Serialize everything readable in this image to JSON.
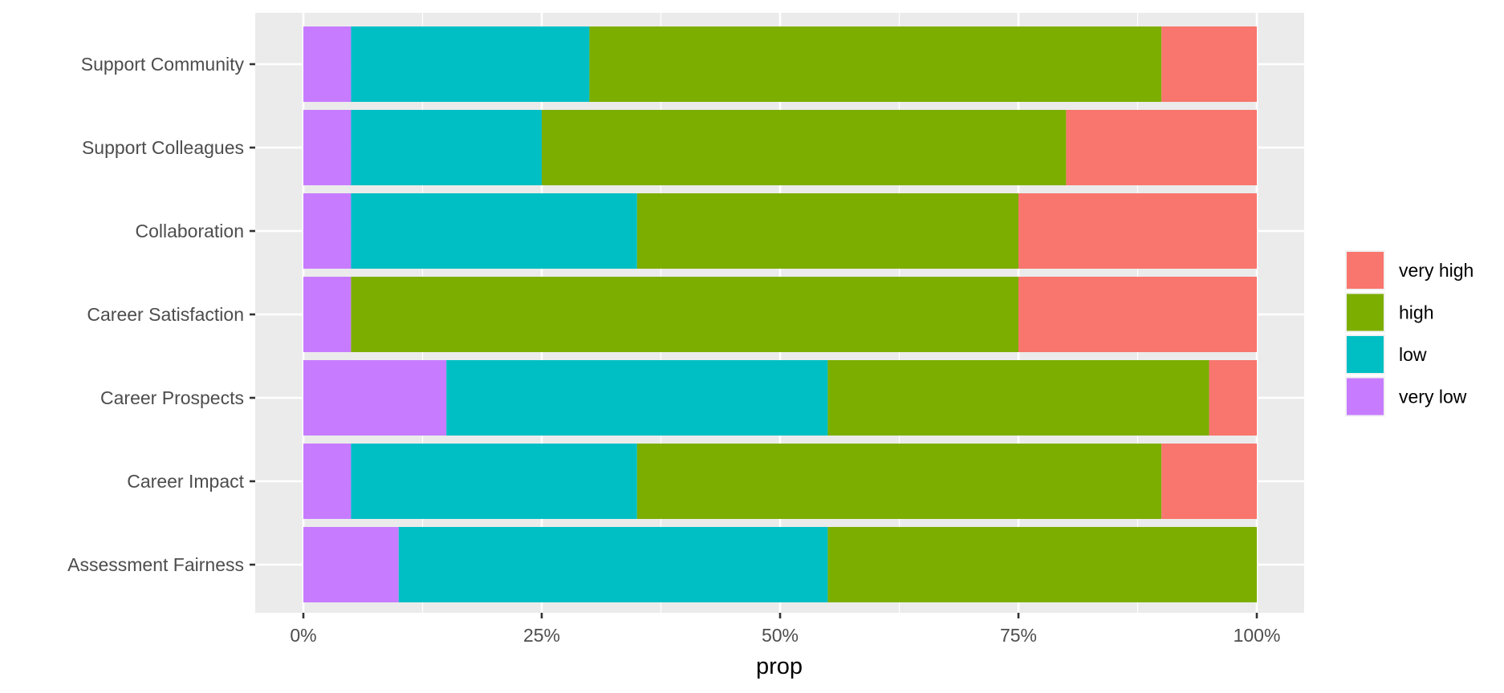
{
  "chart_data": {
    "type": "bar",
    "orientation": "horizontal",
    "stacked": "fill",
    "categories": [
      "Support Community",
      "Support Colleagues",
      "Collaboration",
      "Career Satisfaction",
      "Career Prospects",
      "Career Impact",
      "Assessment Fairness"
    ],
    "series": [
      {
        "name": "very low",
        "color": "#C77CFF",
        "values": [
          0.05,
          0.05,
          0.05,
          0.05,
          0.15,
          0.05,
          0.1
        ]
      },
      {
        "name": "low",
        "color": "#00BFC4",
        "values": [
          0.25,
          0.2,
          0.3,
          0.0,
          0.4,
          0.3,
          0.45
        ]
      },
      {
        "name": "high",
        "color": "#7CAE00",
        "values": [
          0.6,
          0.55,
          0.4,
          0.7,
          0.4,
          0.55,
          0.45
        ]
      },
      {
        "name": "very high",
        "color": "#F8766D",
        "values": [
          0.1,
          0.2,
          0.25,
          0.25,
          0.05,
          0.1,
          0.0
        ]
      }
    ],
    "legend_order": [
      "very high",
      "high",
      "low",
      "very low"
    ],
    "legend_position": "right",
    "xlabel": "prop",
    "ylabel": "",
    "xlim": [
      0,
      1
    ],
    "xticks": [
      0,
      0.25,
      0.5,
      0.75,
      1
    ],
    "xtick_labels": [
      "0%",
      "25%",
      "50%",
      "75%",
      "100%"
    ],
    "grid": true,
    "panel_background": "#EBEBEB",
    "grid_color": "#FFFFFF"
  }
}
